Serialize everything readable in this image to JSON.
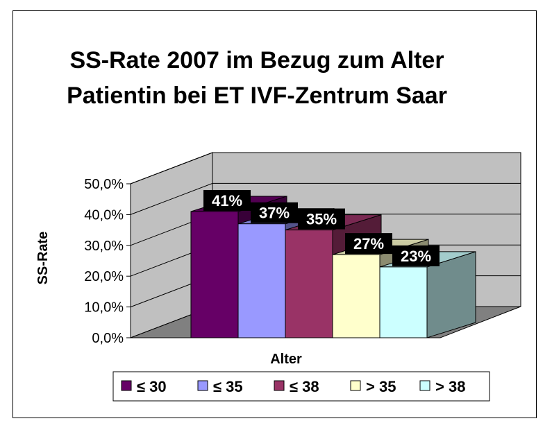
{
  "chart_data": {
    "type": "bar",
    "title": "SS-Rate 2007 im Bezug zum Alter Patientin bei ET IVF-Zentrum Saar",
    "xlabel": "Alter",
    "ylabel": "SS-Rate",
    "ylim": [
      0,
      50
    ],
    "yticks": [
      "0,0%",
      "10,0%",
      "20,0%",
      "30,0%",
      "40,0%",
      "50,0%"
    ],
    "grid": true,
    "legend_position": "bottom",
    "series": [
      {
        "name": "≤ 30",
        "value": 41,
        "label": "41%",
        "color": "#660066"
      },
      {
        "name": "≤ 35",
        "value": 37,
        "label": "37%",
        "color": "#9999FF"
      },
      {
        "name": "≤ 38",
        "value": 35,
        "label": "35%",
        "color": "#993366"
      },
      {
        "name": "> 35",
        "value": 27,
        "label": "27%",
        "color": "#FFFFCC"
      },
      {
        "name": "> 38",
        "value": 23,
        "label": "23%",
        "color": "#CCFFFF"
      }
    ]
  }
}
